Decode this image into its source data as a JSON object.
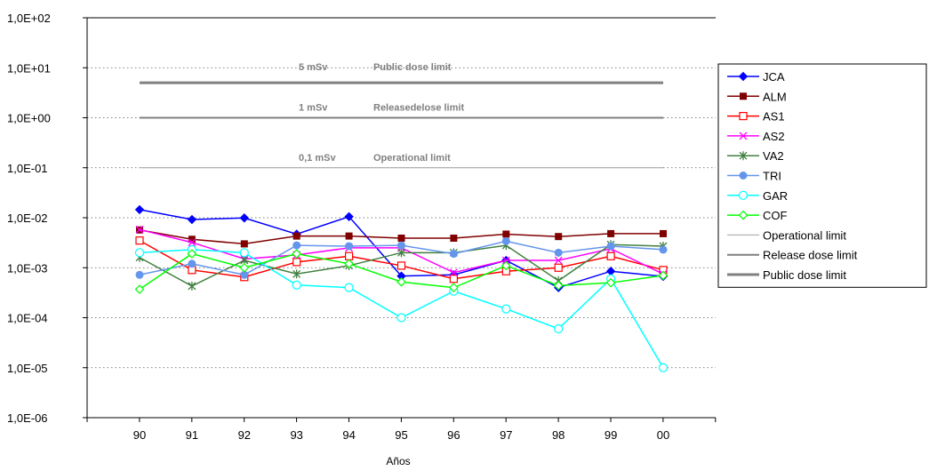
{
  "chart_data": {
    "type": "line",
    "title": "",
    "xlabel": "Años",
    "ylabel": "",
    "y_scale": "log",
    "ylim": [
      1e-06,
      100
    ],
    "grid": "horizontal dotted",
    "legend_position": "right",
    "categories": [
      "90",
      "91",
      "92",
      "93",
      "94",
      "95",
      "96",
      "97",
      "98",
      "99",
      "00"
    ],
    "y_tick_labels": [
      "1,0E-06",
      "1,0E-05",
      "1,0E-04",
      "1,0E-03",
      "1,0E-02",
      "1,0E-01",
      "1,0E+00",
      "1,0E+01",
      "1,0E+02"
    ],
    "series": [
      {
        "name": "JCA",
        "color": "#0000ff",
        "marker": "diamond-filled",
        "values": [
          0.0145,
          0.0092,
          0.0099,
          0.0047,
          0.0105,
          0.00068,
          0.00072,
          0.0014,
          0.0004,
          0.00085,
          0.00067
        ]
      },
      {
        "name": "ALM",
        "color": "#800000",
        "marker": "square-filled",
        "values": [
          0.0057,
          0.0037,
          0.003,
          0.0043,
          0.0043,
          0.0039,
          0.0039,
          0.0047,
          0.0042,
          0.0048,
          0.0048
        ]
      },
      {
        "name": "AS1",
        "color": "#ff0000",
        "marker": "square-open",
        "values": [
          0.0035,
          0.0009,
          0.00065,
          0.0013,
          0.0017,
          0.0011,
          0.0006,
          0.00085,
          0.001,
          0.0017,
          0.0009
        ]
      },
      {
        "name": "AS2",
        "color": "#ff00ff",
        "marker": "x",
        "values": [
          0.0058,
          0.0032,
          0.0015,
          0.0018,
          0.0025,
          0.0025,
          0.0008,
          0.0014,
          0.0014,
          0.0024,
          0.00075
        ]
      },
      {
        "name": "VA2",
        "color": "#408040",
        "marker": "asterisk",
        "values": [
          0.0016,
          0.00043,
          0.0014,
          0.00075,
          0.0011,
          0.002,
          0.002,
          0.0028,
          0.00055,
          0.0029,
          0.0027
        ]
      },
      {
        "name": "TRI",
        "color": "#6495ed",
        "marker": "circle-filled",
        "values": [
          0.00072,
          0.0012,
          0.00072,
          0.0028,
          0.0027,
          0.0028,
          0.0019,
          0.0034,
          0.002,
          0.0027,
          0.0023
        ]
      },
      {
        "name": "GAR",
        "color": "#00ffff",
        "marker": "circle-open",
        "values": [
          0.002,
          0.0023,
          0.002,
          0.00045,
          0.0004,
          0.0001,
          0.00034,
          0.00015,
          6e-05,
          0.0006,
          1e-05
        ]
      },
      {
        "name": "COF",
        "color": "#00ff00",
        "marker": "diamond-open",
        "values": [
          0.00037,
          0.0019,
          0.001,
          0.0019,
          0.0012,
          0.00052,
          0.0004,
          0.0011,
          0.00044,
          0.0005,
          0.0007
        ]
      }
    ],
    "reference_lines": [
      {
        "name": "Public dose limit",
        "value": 5,
        "color": "#808080",
        "width": 3,
        "label": "5 mSv",
        "label2": "Public dose limit"
      },
      {
        "name": "Release dose limit",
        "value": 1,
        "color": "#808080",
        "width": 2,
        "label": "1 mSv",
        "label2": "Releasedelose limit"
      },
      {
        "name": "Operational limit",
        "value": 0.1,
        "color": "#a0a0a0",
        "width": 1,
        "label": "0,1 mSv",
        "label2": "Operational limit"
      }
    ]
  }
}
